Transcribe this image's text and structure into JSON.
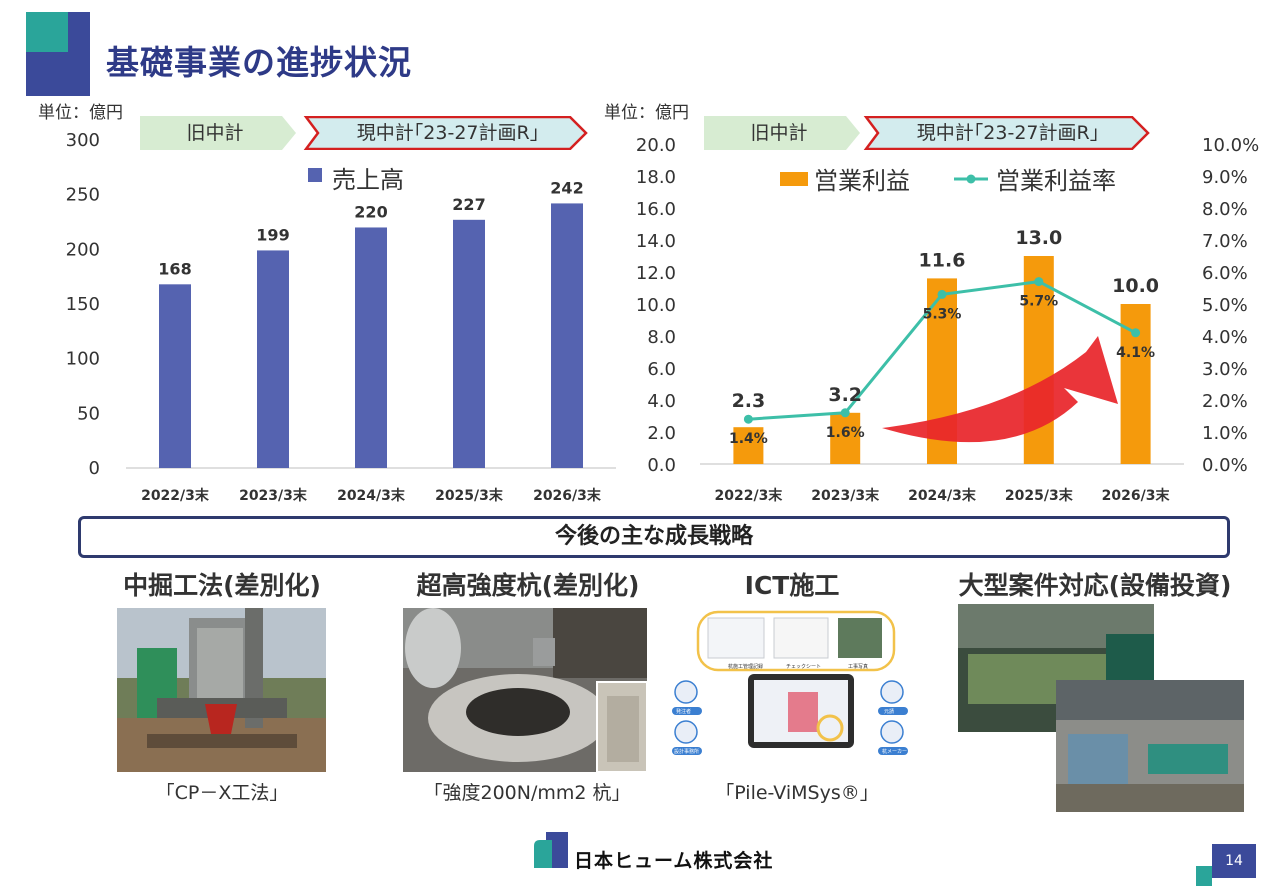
{
  "header": {
    "title": "基礎事業の進捗状況"
  },
  "left_chart": {
    "unit": "単位：億円",
    "phase_old": "旧中計",
    "phase_new": "現中計｢23-27計画R｣",
    "legend": "売上高"
  },
  "right_chart": {
    "unit": "単位：億円",
    "phase_old": "旧中計",
    "phase_new": "現中計｢23-27計画R｣",
    "legend_bar": "営業利益",
    "legend_line": "営業利益率"
  },
  "chart_data": [
    {
      "type": "bar",
      "categories": [
        "2022/3末",
        "2023/3末",
        "2024/3末",
        "2025/3末",
        "2026/3末"
      ],
      "series": [
        {
          "name": "売上高",
          "values": [
            168,
            199,
            220,
            227,
            242
          ]
        }
      ],
      "data_labels": [
        "168",
        "199",
        "220",
        "227",
        "242"
      ],
      "ylim": [
        0,
        300
      ],
      "yticks": [
        "0",
        "50",
        "100",
        "150",
        "200",
        "250",
        "300"
      ],
      "legend": "top",
      "colors": {
        "bar": "#5563b0"
      }
    },
    {
      "type": "bar",
      "categories": [
        "2022/3末",
        "2023/3末",
        "2024/3末",
        "2025/3末",
        "2026/3末"
      ],
      "series": [
        {
          "name": "営業利益",
          "type": "bar",
          "axis": "left",
          "values": [
            2.3,
            3.2,
            11.6,
            13.0,
            10.0
          ]
        },
        {
          "name": "営業利益率",
          "type": "line",
          "axis": "right",
          "values": [
            1.4,
            1.6,
            5.3,
            5.7,
            4.1
          ]
        }
      ],
      "bar_labels": [
        "2.3",
        "3.2",
        "11.6",
        "13.0",
        "10.0"
      ],
      "line_labels": [
        "1.4%",
        "1.6%",
        "5.3%",
        "5.7%",
        "4.1%"
      ],
      "ylim": [
        0,
        20
      ],
      "yticks": [
        "0.0",
        "2.0",
        "4.0",
        "6.0",
        "8.0",
        "10.0",
        "12.0",
        "14.0",
        "16.0",
        "18.0",
        "20.0"
      ],
      "y2lim": [
        0,
        10
      ],
      "y2ticks": [
        "0.0%",
        "1.0%",
        "2.0%",
        "3.0%",
        "4.0%",
        "5.0%",
        "6.0%",
        "7.0%",
        "8.0%",
        "9.0%",
        "10.0%"
      ],
      "legend": "top",
      "colors": {
        "bar": "#f59a0c",
        "line": "#3dbfa8",
        "arrow": "#e8262b"
      }
    }
  ],
  "strategy": {
    "heading": "今後の主な成長戦略",
    "items": [
      {
        "title": "中掘工法(差別化)",
        "caption": "｢CP－X工法｣"
      },
      {
        "title": "超高強度杭(差別化)",
        "caption": "｢強度200N/mm2 杭｣"
      },
      {
        "title": "ICT施工",
        "caption": "｢Pile-ViMSys®｣"
      },
      {
        "title": "大型案件対応(設備投資)",
        "caption": ""
      }
    ],
    "ict_labels": [
      "杭施工管理記録",
      "チェックシート",
      "工事写真",
      "発注者",
      "元請",
      "設計事務所",
      "杭メーカー"
    ]
  },
  "footer": {
    "company": "日本ヒューム株式会社",
    "page": "14"
  }
}
